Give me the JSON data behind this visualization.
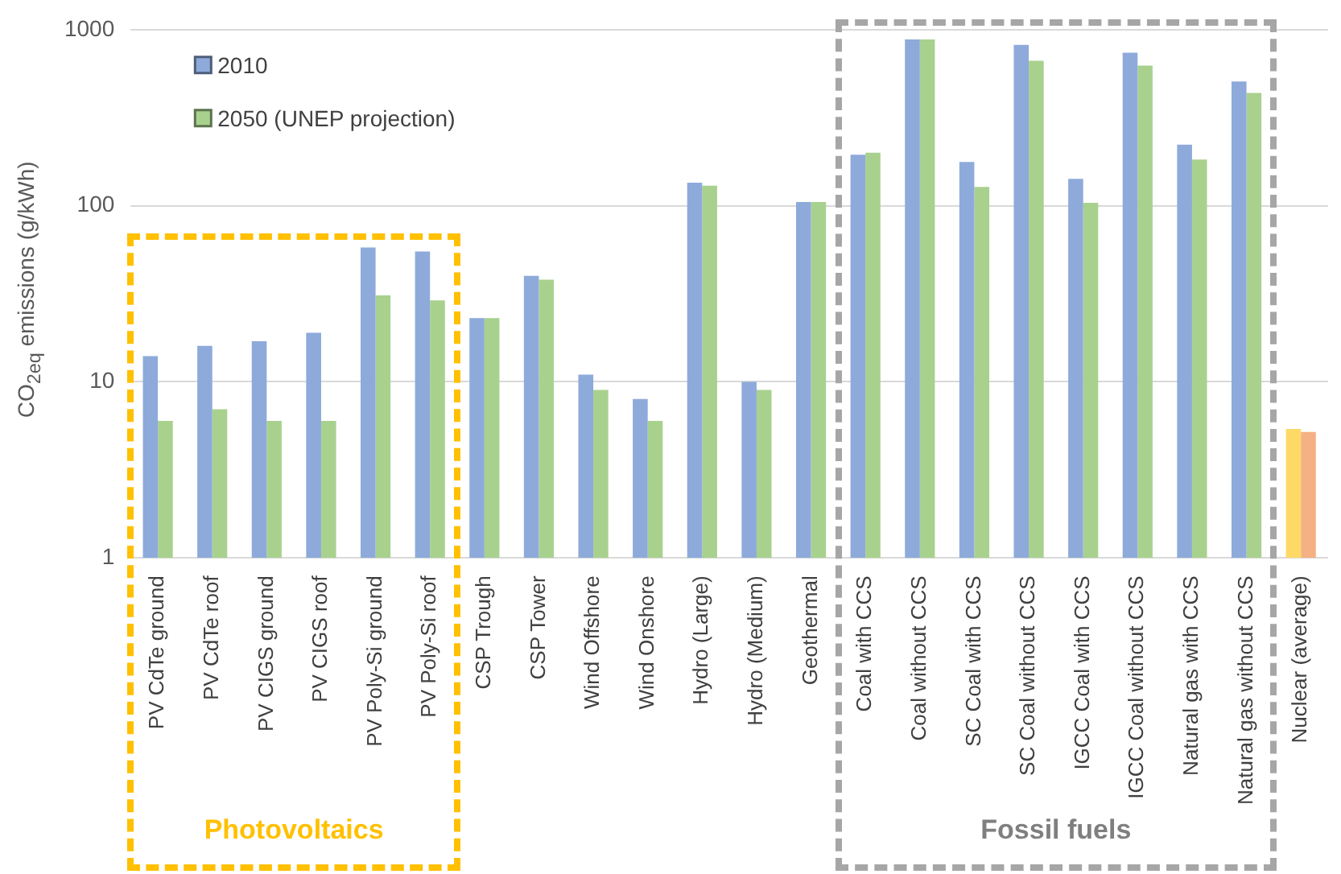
{
  "chart_data": {
    "type": "bar",
    "ylabel": "CO$_{2eq}$ emissions (g/kWh)",
    "categories": [
      "PV CdTe ground",
      "PV CdTe roof",
      "PV CIGS ground",
      "PV CIGS roof",
      "PV Poly-Si ground",
      "PV Poly-Si roof",
      "CSP Trough",
      "CSP Tower",
      "Wind Offshore",
      "Wind Onshore",
      "Hydro (Large)",
      "Hydro (Medium)",
      "Geothermal",
      "Coal with CCS",
      "Coal without CCS",
      "SC Coal with CCS",
      "SC Coal without CCS",
      "IGCC Coal with CCS",
      "IGCC Coal without CCS",
      "Natural gas with CCS",
      "Natural gas without CCS",
      "Nuclear (average)"
    ],
    "series": [
      {
        "name": "2010",
        "color": "#8eaadb",
        "colors": [
          "#8eaadb",
          "#8eaadb",
          "#8eaadb",
          "#8eaadb",
          "#8eaadb",
          "#8eaadb",
          "#8eaadb",
          "#8eaadb",
          "#8eaadb",
          "#8eaadb",
          "#8eaadb",
          "#8eaadb",
          "#8eaadb",
          "#8eaadb",
          "#8eaadb",
          "#8eaadb",
          "#8eaadb",
          "#8eaadb",
          "#8eaadb",
          "#8eaadb",
          "#8eaadb",
          "#ffd966"
        ],
        "values": [
          14,
          16,
          17,
          19,
          58,
          55,
          23,
          40,
          11,
          8,
          135,
          10,
          105,
          195,
          880,
          177,
          820,
          142,
          740,
          222,
          507,
          5.4
        ]
      },
      {
        "name": "2050 (UNEP projection)",
        "color": "#a9d18e",
        "colors": [
          "#a9d18e",
          "#a9d18e",
          "#a9d18e",
          "#a9d18e",
          "#a9d18e",
          "#a9d18e",
          "#a9d18e",
          "#a9d18e",
          "#a9d18e",
          "#a9d18e",
          "#a9d18e",
          "#a9d18e",
          "#a9d18e",
          "#a9d18e",
          "#a9d18e",
          "#a9d18e",
          "#a9d18e",
          "#a9d18e",
          "#a9d18e",
          "#a9d18e",
          "#a9d18e",
          "#f4b183"
        ],
        "values": [
          6,
          7,
          6,
          6,
          31,
          29,
          23,
          38,
          9,
          6,
          130,
          9,
          105,
          200,
          880,
          128,
          665,
          104,
          624,
          183,
          437,
          5.2
        ]
      }
    ],
    "log": "y",
    "ylim": [
      1,
      1000
    ],
    "yticks": [
      1,
      10,
      100,
      1000
    ],
    "grid": "y",
    "legend": "top left",
    "annotations": [
      "Photovoltaics",
      "Fossil fuels"
    ]
  }
}
